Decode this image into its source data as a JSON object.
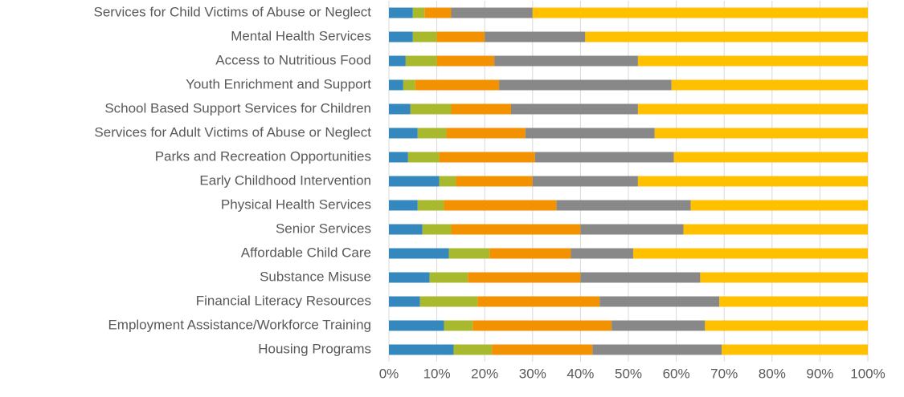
{
  "chart_data": {
    "type": "stacked-bar-horizontal",
    "categories": [
      "Services for Child Victims of Abuse or Neglect",
      "Mental Health Services",
      "Access to Nutritious Food",
      "Youth Enrichment and Support",
      "School Based Support Services for Children",
      "Services for Adult Victims of Abuse or Neglect",
      "Parks and Recreation Opportunities",
      "Early Childhood Intervention",
      "Physical Health Services",
      "Senior Services",
      "Affordable Child Care",
      "Substance Misuse",
      "Financial Literacy Resources",
      "Employment Assistance/Workforce Training",
      "Housing Programs"
    ],
    "series": [
      {
        "color": "#3588bd",
        "values": [
          5,
          5,
          3.5,
          3,
          4.5,
          6,
          4,
          10.5,
          6,
          7,
          12.5,
          8.5,
          6.5,
          11.5,
          13.5
        ]
      },
      {
        "color": "#a9b92e",
        "values": [
          2.5,
          5,
          6.5,
          2.5,
          8.5,
          6,
          6.5,
          3.5,
          5.5,
          6,
          8.5,
          8,
          12,
          6,
          8
        ]
      },
      {
        "color": "#f39200",
        "values": [
          5.5,
          10,
          12,
          17.5,
          12.5,
          16.5,
          20,
          16,
          23.5,
          27,
          17,
          23.5,
          25.5,
          29,
          21
        ]
      },
      {
        "color": "#888888",
        "values": [
          17,
          21,
          30,
          36,
          26.5,
          27,
          29,
          22,
          28,
          21.5,
          13,
          25,
          25,
          19.5,
          27
        ]
      },
      {
        "color": "#ffc000",
        "values": [
          70,
          59,
          48,
          41,
          48,
          44.5,
          40.5,
          48,
          37,
          38.5,
          49,
          35,
          31,
          34,
          30.5
        ]
      }
    ],
    "xlim": [
      0,
      100
    ],
    "xticks": [
      {
        "value": 0,
        "label": "0%"
      },
      {
        "value": 10,
        "label": "10%"
      },
      {
        "value": 20,
        "label": "20%"
      },
      {
        "value": 30,
        "label": "30%"
      },
      {
        "value": 40,
        "label": "40%"
      },
      {
        "value": 50,
        "label": "50%"
      },
      {
        "value": 60,
        "label": "60%"
      },
      {
        "value": 70,
        "label": "70%"
      },
      {
        "value": 80,
        "label": "80%"
      },
      {
        "value": 90,
        "label": "90%"
      },
      {
        "value": 100,
        "label": "100%"
      }
    ],
    "grid": true
  }
}
